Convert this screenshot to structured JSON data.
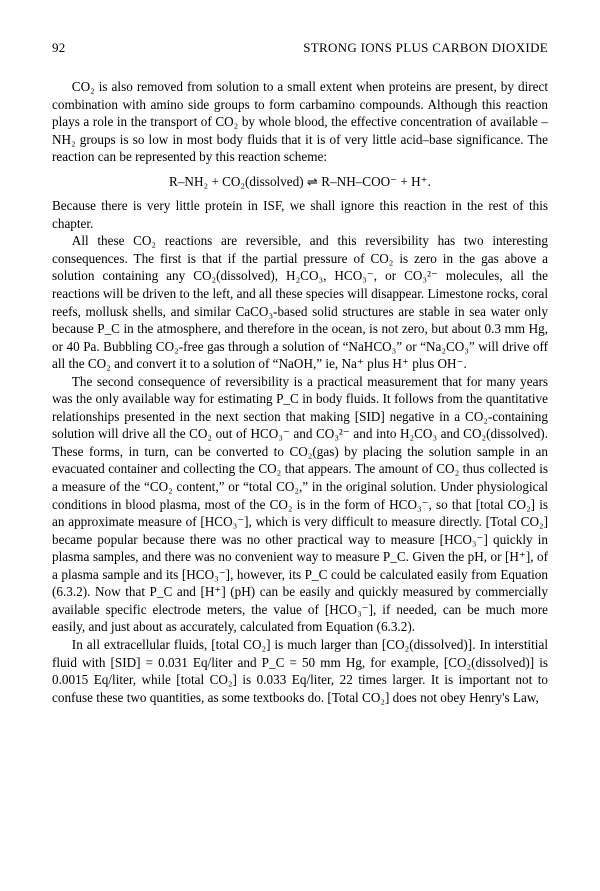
{
  "header": {
    "page_number": "92",
    "chapter_title": "STRONG IONS PLUS CARBON DIOXIDE"
  },
  "paragraphs": {
    "p1": "CO₂ is also removed from solution to a small extent when proteins are present, by direct combination with amino side groups to form carbamino compounds. Although this reaction plays a role in the transport of CO₂ by whole blood, the effective concentration of available –NH₂ groups is so low in most body fluids that it is of very little acid–base significance. The reaction can be represented by this reaction scheme:",
    "equation": "R–NH₂ + CO₂(dissolved) ⇌ R–NH–COO⁻ + H⁺.",
    "p2": "Because there is very little protein in ISF, we shall ignore this reaction in the rest of this chapter.",
    "p3": "All these CO₂ reactions are reversible, and this reversibility has two interesting consequences. The first is that if the partial pressure of CO₂ is zero in the gas above a solution containing any CO₂(dissolved), H₂CO₃, HCO₃⁻, or CO₃²⁻ molecules, all the reactions will be driven to the left, and all these species will disappear. Limestone rocks, coral reefs, mollusk shells, and similar CaCO₃-based solid structures are stable in sea water only because P_C in the atmosphere, and therefore in the ocean, is not zero, but about 0.3 mm Hg, or 40 Pa. Bubbling CO₂-free gas through a solution of “NaHCO₃” or “Na₂CO₃” will drive off all the CO₂ and convert it to a solution of “NaOH,” ie, Na⁺ plus H⁺ plus OH⁻.",
    "p4": "The second consequence of reversibility is a practical measurement that for many years was the only available way for estimating P_C in body fluids. It follows from the quantitative relationships presented in the next section that making [SID] negative in a CO₂-containing solution will drive all the CO₂ out of HCO₃⁻ and CO₃²⁻ and into H₂CO₃ and CO₂(dissolved). These forms, in turn, can be converted to CO₂(gas) by placing the solution sample in an evacuated container and collecting the CO₂ that appears. The amount of CO₂ thus collected is a measure of the “CO₂ content,” or “total CO₂,” in the original solution. Under physiological conditions in blood plasma, most of the CO₂ is in the form of HCO₃⁻, so that [total CO₂] is an approximate measure of [HCO₃⁻], which is very difficult to measure directly. [Total CO₂] became popular because there was no other practical way to measure [HCO₃⁻] quickly in plasma samples, and there was no convenient way to measure P_C. Given the pH, or [H⁺], of a plasma sample and its [HCO₃⁻], however, its P_C could be calculated easily from Equation (6.3.2). Now that P_C and [H⁺] (pH) can be easily and quickly measured by commercially available specific electrode meters, the value of [HCO₃⁻], if needed, can be much more easily, and just about as accurately, calculated from Equation (6.3.2).",
    "p5": "In all extracellular fluids, [total CO₂] is much larger than [CO₂(dissolved)]. In interstitial fluid with [SID] = 0.031 Eq/liter and P_C = 50 mm Hg, for example, [CO₂(dissolved)] is 0.0015 Eq/liter, while [total CO₂] is 0.033 Eq/liter, 22 times larger. It is important not to confuse these two quantities, as some textbooks do. [Total CO₂] does not obey Henry's Law,"
  }
}
